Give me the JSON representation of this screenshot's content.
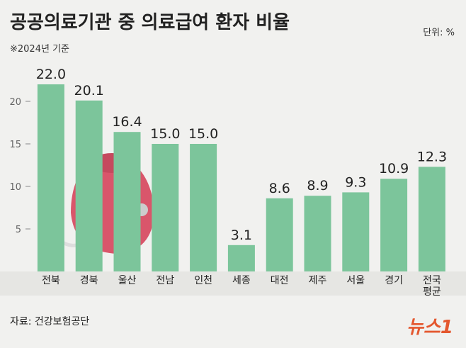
{
  "chart_data": {
    "type": "bar",
    "title": "공공의료기관 중 의료급여 환자 비율",
    "subtitle": "※2024년 기준",
    "unit": "단위: %",
    "source": "자료: 건강보험공단",
    "brand": "뉴스1",
    "categories": [
      "전북",
      "경북",
      "울산",
      "전남",
      "인천",
      "세종",
      "대전",
      "제주",
      "서울",
      "경기",
      "전국\n평균"
    ],
    "values": [
      22,
      20.1,
      16.4,
      15,
      15,
      3.1,
      8.6,
      8.9,
      9.3,
      10.9,
      12.3
    ],
    "value_labels": [
      "22.0",
      "20.1",
      "16.4",
      "15.0",
      "15.0",
      "3.1",
      "8.6",
      "8.9",
      "9.3",
      "10.9",
      "12.3"
    ],
    "color": "#7cc59b",
    "ylim": [
      0,
      24
    ],
    "yticks": [
      5,
      10,
      15,
      20
    ],
    "grid": false
  }
}
